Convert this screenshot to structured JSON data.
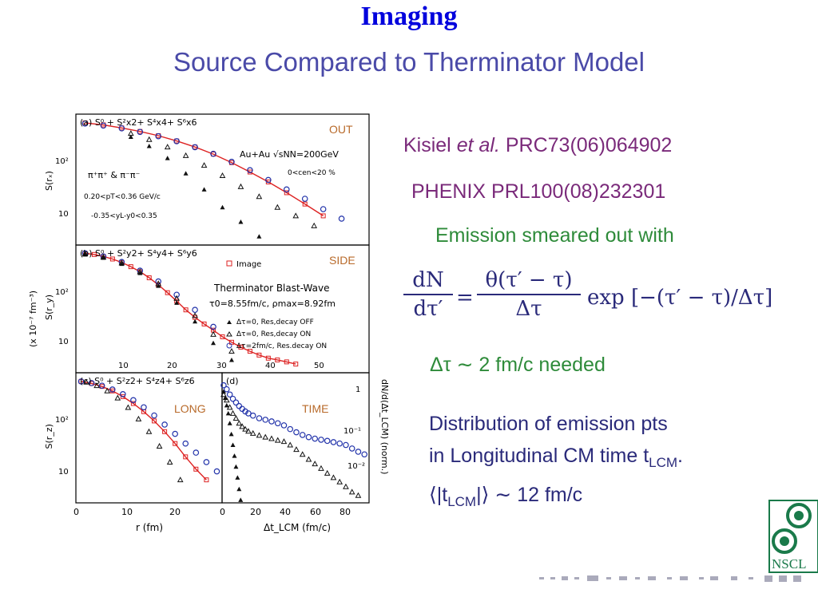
{
  "slide": {
    "title": "Imaging",
    "subtitle": "Source Compared to Therminator Model"
  },
  "references": {
    "ref1_author": "Kisiel",
    "ref1_etal": "et al.",
    "ref1_journal": "PRC73(06)064902",
    "ref2": "PHENIX PRL100(08)232301"
  },
  "notes": {
    "emission": "Emission smeared out with",
    "formula_lhs_num": "dN",
    "formula_lhs_den": "dτ′",
    "formula_eq": "=",
    "formula_rhs_num": "θ(τ′ − τ)",
    "formula_rhs_den": "Δτ",
    "formula_exp": "exp [−(τ′ − τ)/Δτ]",
    "needed": "Δτ ∼ 2 fm/c needed",
    "distribution_line1": "Distribution of emission pts",
    "distribution_line2": "in Longitudinal CM time t",
    "distribution_line2_sub": "LCM",
    "distribution_line2_end": ".",
    "mean_lhs": "⟨|t",
    "mean_sub": "LCM",
    "mean_rhs": "|⟩ ∼ 12 fm/c"
  },
  "logo": {
    "label": "NSCL",
    "color": "#1a7a4a"
  },
  "chart_data": [
    {
      "type": "scatter",
      "panel_label": "(a) S⁰ + S²x2+ S⁴x4+ S⁶x6",
      "corner_label": "OUT",
      "ylabel": "S(rₓ)",
      "annotations": [
        "Au+Au √sNN=200GeV",
        "0<cen<20 %",
        "π⁺π⁺ & π⁻π⁻",
        "0.20<pT<0.36 GeV/c",
        "-0.35<yL-y0<0.35"
      ],
      "yticks": [
        "10²",
        "10"
      ],
      "ylog": true,
      "series": [
        {
          "name": "Image",
          "color": "#dd2222",
          "x": [
            1,
            3,
            5,
            7,
            9,
            11,
            13,
            15,
            17,
            19,
            21,
            23,
            25,
            27
          ],
          "y": [
            330,
            300,
            260,
            220,
            180,
            140,
            105,
            75,
            50,
            32,
            20,
            12,
            7,
            4
          ]
        },
        {
          "x": [
            1,
            3,
            5,
            7,
            9,
            11,
            13,
            15,
            17,
            19,
            21,
            23,
            25,
            27,
            29
          ],
          "y": [
            320,
            290,
            255,
            215,
            175,
            138,
            104,
            76,
            52,
            35,
            22,
            14,
            9,
            5.5,
            3.5
          ],
          "color": "#2233aa",
          "marker": "circle"
        },
        {
          "x": [
            6,
            8,
            10,
            12,
            14,
            16,
            18,
            20,
            22,
            24,
            26
          ],
          "y": [
            200,
            150,
            105,
            70,
            44,
            27,
            16,
            10,
            6,
            4,
            2.5
          ],
          "color": "#111111",
          "marker": "open-triangle"
        },
        {
          "x": [
            6,
            8,
            10,
            12,
            14,
            16,
            18,
            20
          ],
          "y": [
            170,
            110,
            62,
            30,
            14,
            6,
            3,
            1.5
          ],
          "color": "#111111",
          "marker": "filled-triangle"
        }
      ]
    },
    {
      "type": "scatter",
      "panel_label": "(b) S⁰ + S²y2+ S⁴y4+ S⁶y6",
      "corner_label": "SIDE",
      "ylabel": "S(r_y)",
      "yunit": "(x 10⁻⁷ fm⁻³)",
      "legend": [
        "Image",
        "Therminator Blast-Wave",
        "τ0=8.55fm/c, ρmax=8.92fm",
        "Δτ=0, Res,decay OFF",
        "Δτ=0, Res,decay ON",
        "Δτ=2fm/c, Res.decay ON"
      ],
      "yticks": [
        "10²",
        "10"
      ],
      "ylog": true,
      "series": [
        {
          "name": "Image",
          "color": "#dd2222",
          "x": [
            1,
            2,
            3,
            4,
            5,
            6,
            7,
            8,
            9,
            10,
            11,
            12,
            13,
            14,
            15,
            16,
            17,
            18,
            19,
            20,
            21,
            22,
            23,
            24
          ],
          "y": [
            320,
            300,
            270,
            235,
            195,
            155,
            118,
            85,
            58,
            38,
            24,
            15,
            10,
            7,
            5,
            3.5,
            2.6,
            2,
            1.6,
            1.3,
            1.1,
            1,
            0.9,
            0.8
          ]
        },
        {
          "x": [
            1,
            3,
            5,
            7,
            9,
            11,
            13,
            15
          ],
          "y": [
            320,
            270,
            200,
            125,
            70,
            34,
            15,
            6
          ],
          "color": "#2233aa",
          "marker": "circle"
        },
        {
          "x": [
            1,
            3,
            5,
            7,
            9,
            11,
            13,
            15,
            17
          ],
          "y": [
            310,
            260,
            190,
            118,
            62,
            28,
            11,
            4,
            1.6
          ],
          "color": "#111111",
          "marker": "open-triangle"
        },
        {
          "x": [
            1,
            3,
            5,
            7,
            9,
            11,
            13,
            15,
            17
          ],
          "y": [
            300,
            250,
            180,
            110,
            55,
            22,
            8,
            2.5,
            1
          ],
          "color": "#111111",
          "marker": "filled-triangle"
        }
      ]
    },
    {
      "type": "scatter",
      "panel_label": "(c) S⁰ + S²z2+ S⁴z4+ S⁶z6",
      "corner_label": "LONG",
      "ylabel": "S(r_z)",
      "xlabel": "r (fm)",
      "xticks": [
        "0",
        "10",
        "20"
      ],
      "xticks_shared_b": [
        "10",
        "20",
        "30",
        "40",
        "50"
      ],
      "yticks": [
        "10²",
        "10"
      ],
      "ylog": true,
      "series": [
        {
          "name": "Image",
          "color": "#dd2222",
          "x": [
            1,
            3,
            5,
            7,
            9,
            11,
            13,
            15,
            17,
            19,
            21,
            23,
            25
          ],
          "y": [
            330,
            300,
            260,
            210,
            160,
            115,
            78,
            50,
            30,
            17,
            9,
            5,
            3
          ]
        },
        {
          "x": [
            1,
            3,
            5,
            7,
            9,
            11,
            13,
            15,
            17,
            19,
            21,
            23,
            25,
            27
          ],
          "y": [
            330,
            305,
            270,
            225,
            180,
            135,
            96,
            65,
            42,
            27,
            17,
            11,
            7,
            4.5
          ],
          "color": "#2233aa",
          "marker": "circle"
        },
        {
          "x": [
            2,
            4,
            6,
            8,
            10,
            12,
            14,
            16,
            18,
            20
          ],
          "y": [
            320,
            270,
            210,
            150,
            95,
            55,
            30,
            15,
            7,
            3
          ],
          "color": "#111111",
          "marker": "open-triangle"
        }
      ]
    },
    {
      "type": "scatter",
      "panel_label": "(d)",
      "corner_label": "TIME",
      "xlabel": "Δt_LCM (fm/c)",
      "ylabel": "dN/d(Δt_LCM) (norm.)",
      "xticks": [
        "0",
        "20",
        "40",
        "60",
        "80"
      ],
      "yticks": [
        "1",
        "10⁻¹",
        "10⁻²"
      ],
      "ylog": true,
      "series": [
        {
          "x": [
            1,
            3,
            5,
            7,
            9,
            11,
            13,
            15,
            17,
            20,
            24,
            28,
            32,
            36,
            40,
            44,
            48,
            52,
            56,
            60,
            64,
            68,
            72,
            76,
            80,
            84,
            88,
            92
          ],
          "y": [
            0.9,
            0.7,
            0.5,
            0.38,
            0.3,
            0.24,
            0.2,
            0.17,
            0.15,
            0.13,
            0.11,
            0.1,
            0.09,
            0.08,
            0.07,
            0.055,
            0.045,
            0.038,
            0.033,
            0.03,
            0.028,
            0.026,
            0.024,
            0.022,
            0.02,
            0.016,
            0.013,
            0.011
          ],
          "color": "#2233aa",
          "marker": "circle"
        },
        {
          "x": [
            1,
            3,
            5,
            7,
            9,
            11,
            13,
            15,
            17,
            20,
            24,
            28,
            32,
            36,
            40,
            44,
            48,
            52,
            56,
            60,
            64,
            68,
            72,
            76,
            80,
            84,
            88
          ],
          "y": [
            0.5,
            0.35,
            0.22,
            0.15,
            0.11,
            0.08,
            0.065,
            0.055,
            0.048,
            0.042,
            0.037,
            0.033,
            0.03,
            0.027,
            0.025,
            0.02,
            0.015,
            0.011,
            0.008,
            0.006,
            0.0045,
            0.0033,
            0.0025,
            0.0019,
            0.0014,
            0.001,
            0.0008
          ],
          "color": "#111111",
          "marker": "open-triangle"
        },
        {
          "x": [
            1,
            2,
            3,
            4,
            5,
            6,
            7,
            8,
            9,
            10,
            11,
            12
          ],
          "y": [
            0.6,
            0.4,
            0.25,
            0.15,
            0.08,
            0.04,
            0.02,
            0.01,
            0.005,
            0.0025,
            0.0012,
            0.0006
          ],
          "color": "#111111",
          "marker": "filled-triangle"
        }
      ]
    }
  ]
}
